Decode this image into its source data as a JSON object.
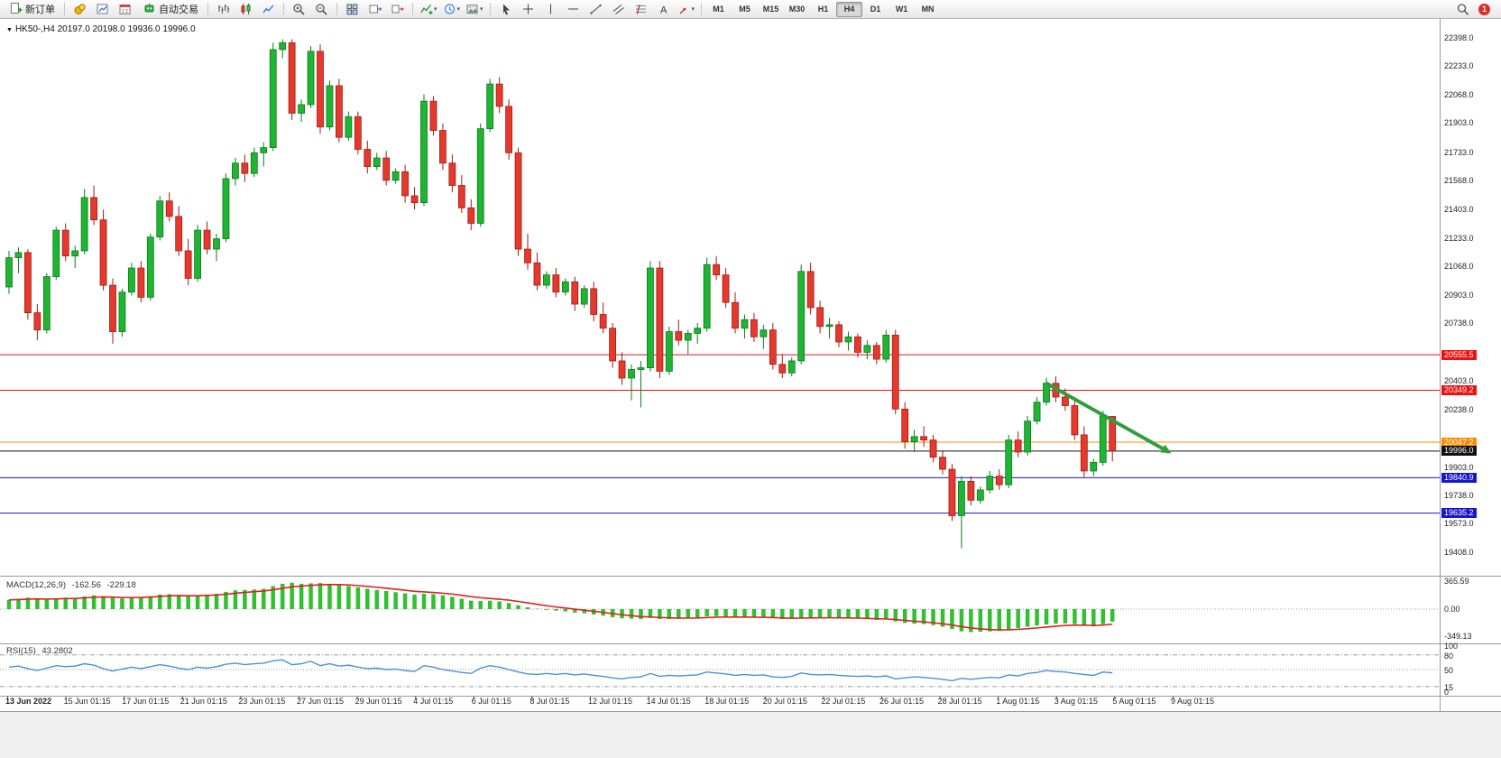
{
  "toolbar": {
    "new_order_label": "新订单",
    "auto_trading_label": "自动交易",
    "notification_count": "1",
    "timeframes": [
      "M1",
      "M5",
      "M15",
      "M30",
      "H1",
      "H4",
      "D1",
      "W1",
      "MN"
    ],
    "active_timeframe": "H4",
    "icon_groups": [
      {
        "host": "g-misc",
        "items": [
          {
            "name": "market-watch-icon-button",
            "icon": "coins"
          },
          {
            "name": "data-window-icon-button",
            "icon": "chart-doc"
          },
          {
            "name": "calendar-icon-button",
            "icon": "calendar"
          }
        ]
      },
      {
        "host": "g-chart-type",
        "items": [
          {
            "name": "bar-chart-icon-button",
            "icon": "bars"
          },
          {
            "name": "candlestick-chart-icon-button",
            "icon": "candles"
          },
          {
            "name": "line-chart-icon-button",
            "icon": "linechart"
          }
        ]
      },
      {
        "host": "g-zoom",
        "items": [
          {
            "name": "zoom-in-icon-button",
            "icon": "zoom-in"
          },
          {
            "name": "zoom-out-icon-button",
            "icon": "zoom-out"
          }
        ]
      },
      {
        "host": "g-windows",
        "items": [
          {
            "name": "tile-windows-icon-button",
            "icon": "tile"
          },
          {
            "name": "auto-scroll-icon-button",
            "icon": "chart-scroll"
          },
          {
            "name": "chart-shift-icon-button",
            "icon": "chart-shift"
          }
        ]
      },
      {
        "host": "g-insert",
        "items": [
          {
            "name": "indicators-icon-button",
            "icon": "indicators",
            "caret": true
          },
          {
            "name": "periods-clock-icon-button",
            "icon": "clock",
            "caret": true
          },
          {
            "name": "chart-snapshot-icon-button",
            "icon": "snapshot",
            "caret": true
          }
        ]
      },
      {
        "host": "g-draw",
        "items": [
          {
            "name": "cursor-icon-button",
            "icon": "cursor"
          },
          {
            "name": "crosshair-icon-button",
            "icon": "crosshair"
          },
          {
            "name": "vertical-line-icon-button",
            "icon": "vline"
          },
          {
            "name": "horizontal-line-icon-button",
            "icon": "hline"
          },
          {
            "name": "trendline-icon-button",
            "icon": "trendline"
          },
          {
            "name": "channel-icon-button",
            "icon": "channel"
          },
          {
            "name": "fibonacci-icon-button",
            "icon": "fibonacci"
          },
          {
            "name": "text-tool-icon-button",
            "icon": "text-a"
          },
          {
            "name": "arrows-tool-icon-button",
            "icon": "arrows",
            "caret": true
          }
        ]
      }
    ]
  },
  "chart": {
    "ohlc_header": "HK50-,H4  20197.0 20198.0 19936.0 19996.0"
  },
  "chart_data": {
    "type": "candlestick",
    "symbol": "HK50-",
    "timeframe": "H4",
    "current": {
      "open": 20197.0,
      "high": 20198.0,
      "low": 19936.0,
      "close": 19996.0
    },
    "price_axis_range": [
      19408.0,
      22398.0
    ],
    "price_ticks": [
      22398.0,
      22233.0,
      22068.0,
      21903.0,
      21733.0,
      21568.0,
      21403.0,
      21233.0,
      21068.0,
      20903.0,
      20738.0,
      20403.0,
      20238.0,
      19903.0,
      19738.0,
      19573.0,
      19408.0
    ],
    "time_labels": [
      "13 Jun 2022",
      "15 Jun 01:15",
      "17 Jun 01:15",
      "21 Jun 01:15",
      "23 Jun 01:15",
      "27 Jun 01:15",
      "29 Jun 01:15",
      "4 Jul 01:15",
      "6 Jul 01:15",
      "8 Jul 01:15",
      "12 Jul 01:15",
      "14 Jul 01:15",
      "18 Jul 01:15",
      "20 Jul 01:15",
      "22 Jul 01:15",
      "26 Jul 01:15",
      "28 Jul 01:15",
      "1 Aug 01:15",
      "3 Aug 01:15",
      "5 Aug 01:15",
      "9 Aug 01:15"
    ],
    "levels": [
      {
        "price": 20555.5,
        "color": "#ee1111"
      },
      {
        "price": 20349.2,
        "color": "#ee1111"
      },
      {
        "price": 20047.2,
        "color": "#ff8a00"
      },
      {
        "price": 19996.0,
        "color": "#111111"
      },
      {
        "price": 19840.9,
        "color": "#1717cc"
      },
      {
        "price": 19635.2,
        "color": "#1717cc"
      }
    ],
    "arrow": {
      "from_candle": 110,
      "from_price": 20390,
      "to_candle": 123,
      "to_price": 19990,
      "color": "#2f9e3f"
    },
    "candles": [
      [
        20950,
        21160,
        20910,
        21120
      ],
      [
        21120,
        21180,
        21030,
        21150
      ],
      [
        21150,
        21170,
        20760,
        20800
      ],
      [
        20800,
        20850,
        20640,
        20700
      ],
      [
        20700,
        21030,
        20680,
        21010
      ],
      [
        21010,
        21300,
        20990,
        21280
      ],
      [
        21280,
        21320,
        21100,
        21130
      ],
      [
        21130,
        21190,
        21060,
        21160
      ],
      [
        21160,
        21520,
        21140,
        21470
      ],
      [
        21470,
        21540,
        21310,
        21340
      ],
      [
        21340,
        21400,
        20930,
        20960
      ],
      [
        20960,
        21000,
        20620,
        20690
      ],
      [
        20690,
        20940,
        20660,
        20920
      ],
      [
        20920,
        21090,
        20900,
        21060
      ],
      [
        21060,
        21100,
        20860,
        20890
      ],
      [
        20890,
        21260,
        20870,
        21240
      ],
      [
        21240,
        21480,
        21220,
        21450
      ],
      [
        21450,
        21500,
        21330,
        21360
      ],
      [
        21360,
        21420,
        21130,
        21160
      ],
      [
        21160,
        21230,
        20960,
        21000
      ],
      [
        21000,
        21310,
        20980,
        21280
      ],
      [
        21280,
        21330,
        21140,
        21170
      ],
      [
        21170,
        21260,
        21100,
        21230
      ],
      [
        21230,
        21610,
        21210,
        21580
      ],
      [
        21580,
        21700,
        21540,
        21670
      ],
      [
        21670,
        21720,
        21560,
        21610
      ],
      [
        21610,
        21760,
        21590,
        21730
      ],
      [
        21730,
        21790,
        21650,
        21760
      ],
      [
        21760,
        22370,
        21740,
        22330
      ],
      [
        22330,
        22390,
        22280,
        22370
      ],
      [
        22370,
        22390,
        21920,
        21960
      ],
      [
        21960,
        22040,
        21910,
        22010
      ],
      [
        22010,
        22350,
        21990,
        22320
      ],
      [
        22320,
        22360,
        21840,
        21880
      ],
      [
        21880,
        22150,
        21860,
        22120
      ],
      [
        22120,
        22160,
        21790,
        21820
      ],
      [
        21820,
        21970,
        21800,
        21940
      ],
      [
        21940,
        21970,
        21720,
        21750
      ],
      [
        21750,
        21800,
        21610,
        21650
      ],
      [
        21650,
        21730,
        21630,
        21700
      ],
      [
        21700,
        21740,
        21540,
        21570
      ],
      [
        21570,
        21640,
        21550,
        21620
      ],
      [
        21620,
        21660,
        21440,
        21480
      ],
      [
        21480,
        21530,
        21400,
        21440
      ],
      [
        21440,
        22070,
        21420,
        22030
      ],
      [
        22030,
        22060,
        21830,
        21860
      ],
      [
        21860,
        21900,
        21630,
        21670
      ],
      [
        21670,
        21720,
        21500,
        21540
      ],
      [
        21540,
        21600,
        21380,
        21410
      ],
      [
        21410,
        21460,
        21280,
        21320
      ],
      [
        21320,
        21900,
        21300,
        21870
      ],
      [
        21870,
        22160,
        21850,
        22130
      ],
      [
        22130,
        22170,
        21960,
        22000
      ],
      [
        22000,
        22040,
        21690,
        21730
      ],
      [
        21730,
        21760,
        21130,
        21170
      ],
      [
        21170,
        21260,
        21050,
        21090
      ],
      [
        21090,
        21150,
        20930,
        20960
      ],
      [
        20960,
        21040,
        20940,
        21020
      ],
      [
        21020,
        21060,
        20890,
        20920
      ],
      [
        20920,
        21000,
        20900,
        20980
      ],
      [
        20980,
        21010,
        20810,
        20850
      ],
      [
        20850,
        20960,
        20830,
        20940
      ],
      [
        20940,
        20980,
        20750,
        20790
      ],
      [
        20790,
        20860,
        20680,
        20710
      ],
      [
        20710,
        20740,
        20480,
        20520
      ],
      [
        20520,
        20570,
        20380,
        20420
      ],
      [
        20420,
        20500,
        20290,
        20470
      ],
      [
        20470,
        20520,
        20250,
        20480
      ],
      [
        20480,
        21100,
        20460,
        21060
      ],
      [
        21060,
        21100,
        20420,
        20460
      ],
      [
        20460,
        20720,
        20440,
        20690
      ],
      [
        20690,
        20760,
        20610,
        20640
      ],
      [
        20640,
        20700,
        20560,
        20680
      ],
      [
        20680,
        20740,
        20620,
        20710
      ],
      [
        20710,
        21120,
        20690,
        21080
      ],
      [
        21080,
        21130,
        20990,
        21020
      ],
      [
        21020,
        21060,
        20830,
        20860
      ],
      [
        20860,
        20920,
        20680,
        20710
      ],
      [
        20710,
        20790,
        20650,
        20760
      ],
      [
        20760,
        20800,
        20630,
        20660
      ],
      [
        20660,
        20730,
        20590,
        20700
      ],
      [
        20700,
        20740,
        20470,
        20500
      ],
      [
        20500,
        20560,
        20420,
        20450
      ],
      [
        20450,
        20540,
        20430,
        20520
      ],
      [
        20520,
        21080,
        20500,
        21040
      ],
      [
        21040,
        21090,
        20790,
        20830
      ],
      [
        20830,
        20870,
        20680,
        20720
      ],
      [
        20720,
        20770,
        20650,
        20730
      ],
      [
        20730,
        20750,
        20600,
        20630
      ],
      [
        20630,
        20690,
        20580,
        20660
      ],
      [
        20660,
        20680,
        20540,
        20570
      ],
      [
        20570,
        20640,
        20530,
        20610
      ],
      [
        20610,
        20630,
        20500,
        20530
      ],
      [
        20530,
        20700,
        20510,
        20670
      ],
      [
        20670,
        20700,
        20210,
        20240
      ],
      [
        20240,
        20280,
        20010,
        20050
      ],
      [
        20050,
        20120,
        19990,
        20080
      ],
      [
        20080,
        20140,
        20020,
        20060
      ],
      [
        20060,
        20090,
        19930,
        19960
      ],
      [
        19960,
        20000,
        19860,
        19890
      ],
      [
        19890,
        19920,
        19590,
        19620
      ],
      [
        19620,
        19850,
        19430,
        19820
      ],
      [
        19820,
        19850,
        19680,
        19710
      ],
      [
        19710,
        19790,
        19690,
        19770
      ],
      [
        19770,
        19880,
        19750,
        19850
      ],
      [
        19850,
        19890,
        19770,
        19800
      ],
      [
        19800,
        20090,
        19780,
        20060
      ],
      [
        20060,
        20110,
        19960,
        19990
      ],
      [
        19990,
        20200,
        19970,
        20170
      ],
      [
        20170,
        20310,
        20150,
        20280
      ],
      [
        20280,
        20420,
        20260,
        20390
      ],
      [
        20390,
        20430,
        20280,
        20310
      ],
      [
        20310,
        20360,
        20230,
        20260
      ],
      [
        20260,
        20300,
        20060,
        20090
      ],
      [
        20090,
        20140,
        19840,
        19880
      ],
      [
        19880,
        19950,
        19850,
        19930
      ],
      [
        19930,
        20230,
        19910,
        20200
      ],
      [
        20197,
        20198,
        19936,
        19996
      ]
    ],
    "indicators": {
      "macd": {
        "label": "MACD(12,26,9)",
        "value_main": "-162.56",
        "value_signal": "-229.18",
        "axis": [
          365.59,
          0.0,
          -349.13
        ],
        "hist": [
          120,
          135,
          150,
          140,
          125,
          140,
          150,
          145,
          165,
          180,
          170,
          150,
          140,
          150,
          155,
          170,
          190,
          195,
          185,
          170,
          175,
          190,
          200,
          225,
          245,
          250,
          255,
          265,
          300,
          330,
          345,
          330,
          335,
          340,
          330,
          320,
          300,
          285,
          265,
          250,
          235,
          220,
          205,
          190,
          200,
          195,
          180,
          160,
          135,
          110,
          105,
          110,
          100,
          80,
          50,
          25,
          5,
          -10,
          -20,
          -30,
          -45,
          -55,
          -70,
          -85,
          -105,
          -120,
          -125,
          -130,
          -115,
          -130,
          -130,
          -125,
          -120,
          -110,
          -95,
          -90,
          -95,
          -105,
          -105,
          -110,
          -110,
          -120,
          -130,
          -130,
          -115,
          -110,
          -110,
          -110,
          -115,
          -120,
          -125,
          -130,
          -140,
          -135,
          -160,
          -180,
          -190,
          -195,
          -210,
          -230,
          -260,
          -290,
          -300,
          -295,
          -290,
          -285,
          -265,
          -250,
          -230,
          -215,
          -200,
          -190,
          -185,
          -195,
          -210,
          -225,
          -195,
          -162.56
        ]
      },
      "rsi": {
        "label": "RSI(15)",
        "value": "43.2802",
        "axis": [
          100,
          80,
          50,
          15,
          0
        ],
        "levels": [
          80,
          50,
          15
        ],
        "values": [
          55,
          57,
          52,
          48,
          53,
          58,
          56,
          57,
          62,
          59,
          52,
          47,
          51,
          55,
          52,
          56,
          60,
          57,
          53,
          50,
          55,
          53,
          56,
          61,
          63,
          60,
          62,
          63,
          68,
          70,
          60,
          62,
          67,
          58,
          62,
          57,
          59,
          55,
          52,
          53,
          50,
          51,
          48,
          46,
          58,
          55,
          50,
          47,
          44,
          42,
          53,
          58,
          55,
          50,
          45,
          41,
          40,
          42,
          40,
          42,
          39,
          41,
          38,
          36,
          33,
          31,
          34,
          35,
          42,
          36,
          38,
          37,
          38,
          39,
          45,
          43,
          41,
          38,
          40,
          38,
          39,
          35,
          34,
          36,
          43,
          40,
          39,
          40,
          38,
          37,
          36,
          37,
          35,
          37,
          31,
          33,
          35,
          34,
          32,
          30,
          27,
          32,
          30,
          32,
          34,
          33,
          39,
          37,
          42,
          44,
          48,
          46,
          45,
          42,
          40,
          38,
          45,
          43.28
        ]
      }
    },
    "colors": {
      "up": "#1fb432",
      "up_dark": "#0c7a1e",
      "down": "#e6392e",
      "down_dark": "#9e1d14",
      "macd_hist": "#2fc12f",
      "macd_signal": "#e02020",
      "rsi_line": "#4a90d9"
    }
  }
}
